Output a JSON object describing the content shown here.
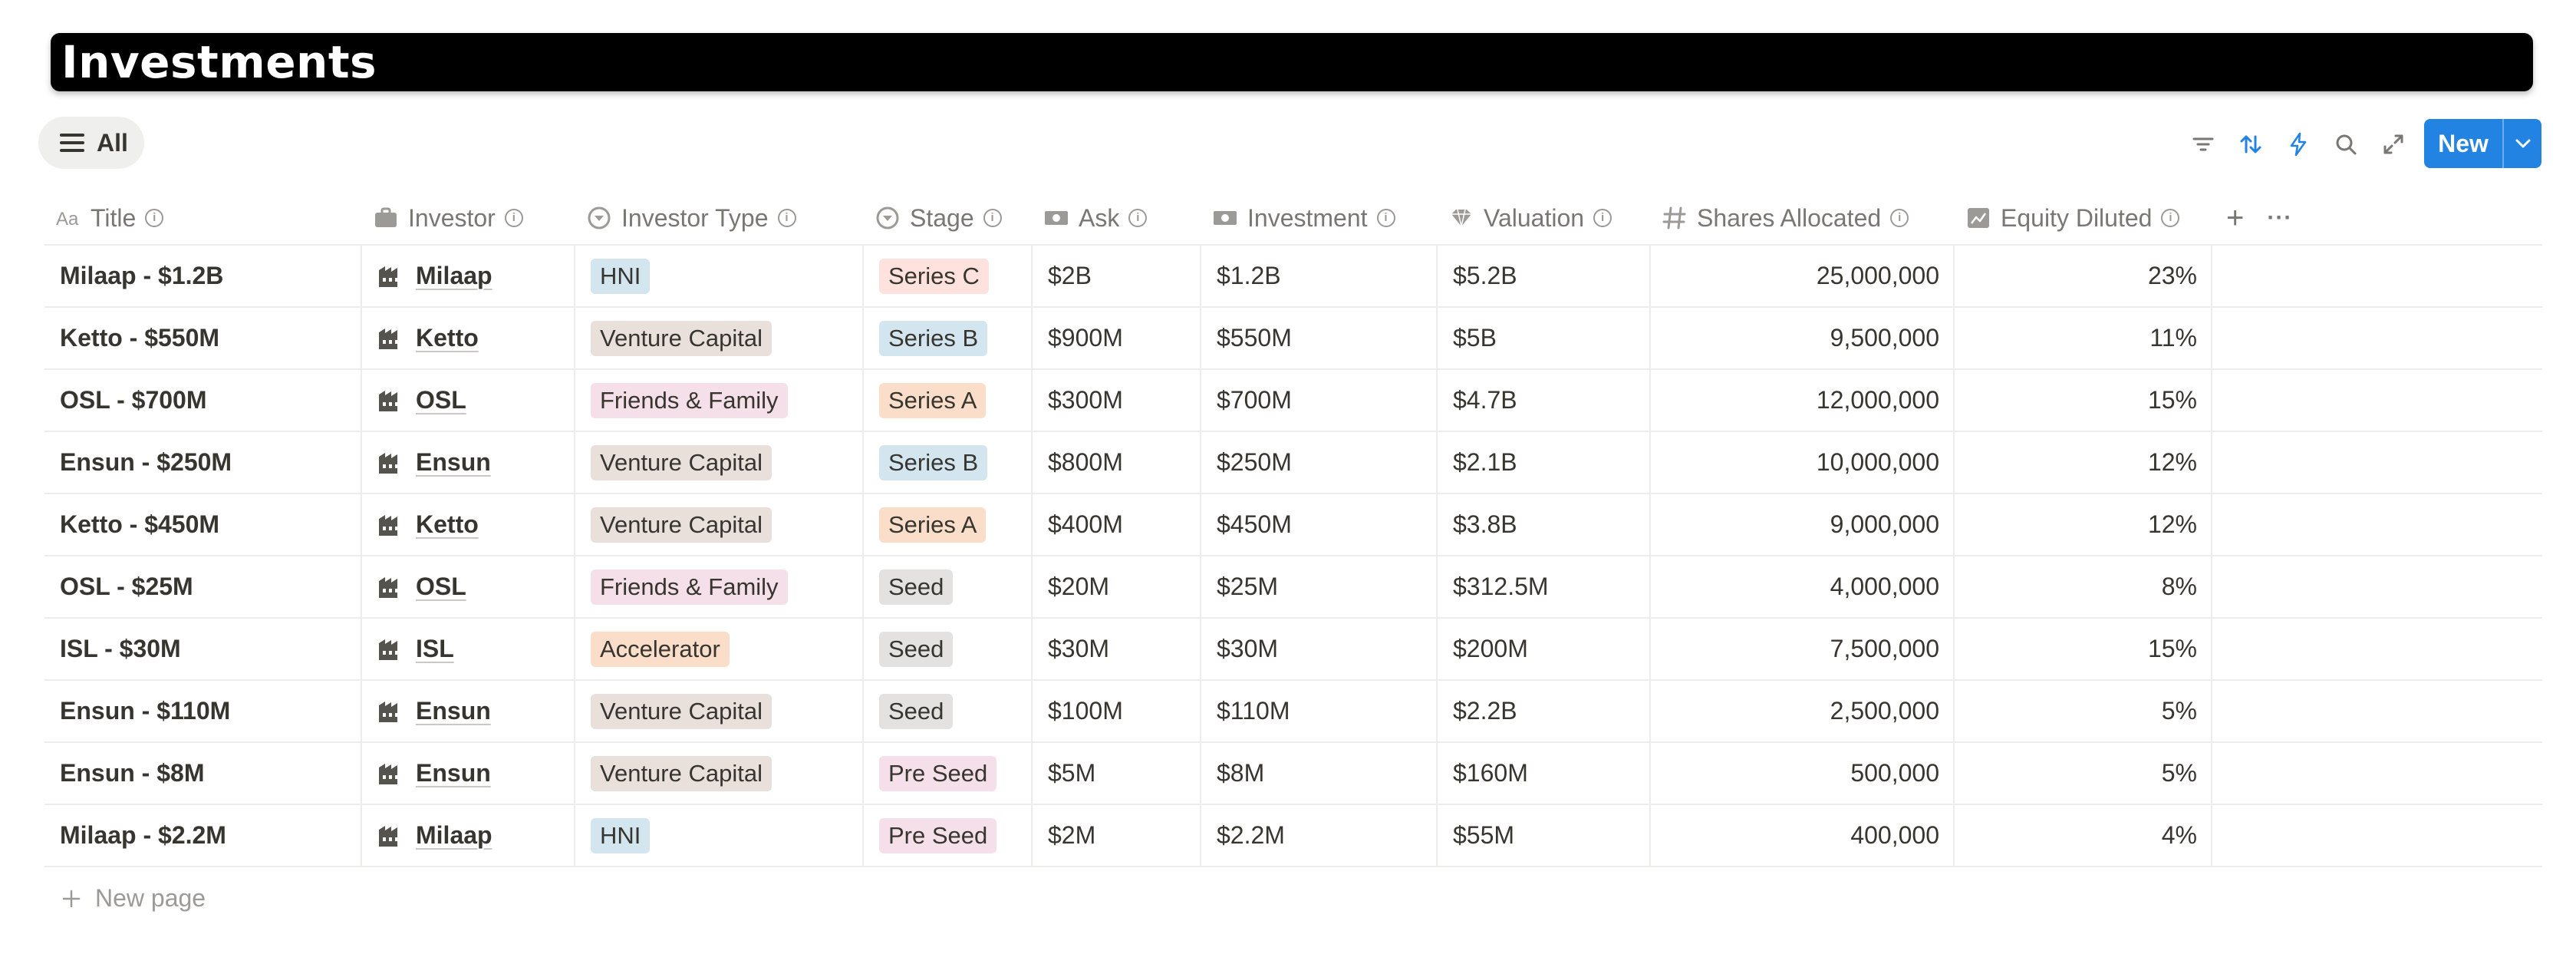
{
  "page_title": "Investments",
  "view_tab": {
    "label": "All"
  },
  "toolbar": {
    "new_label": "New"
  },
  "columns": {
    "title": "Title",
    "investor": "Investor",
    "investor_type": "Investor Type",
    "stage": "Stage",
    "ask": "Ask",
    "investment": "Investment",
    "valuation": "Valuation",
    "shares": "Shares Allocated",
    "equity": "Equity Diluted"
  },
  "tag_colors": {
    "HNI": "#d3e5ef",
    "Venture Capital": "#e9e0dc",
    "Friends & Family": "#f5e0e9",
    "Accelerator": "#fadec9",
    "Series C": "#ffe2dd",
    "Series B": "#d3e5ef",
    "Series A": "#fadec9",
    "Seed": "#e3e2e0",
    "Pre Seed": "#f5e0e9"
  },
  "rows": [
    {
      "title": "Milaap - $1.2B",
      "investor": "Milaap",
      "investor_type": "HNI",
      "stage": "Series C",
      "ask": "$2B",
      "investment": "$1.2B",
      "valuation": "$5.2B",
      "shares": "25,000,000",
      "equity": "23%"
    },
    {
      "title": "Ketto - $550M",
      "investor": "Ketto",
      "investor_type": "Venture Capital",
      "stage": "Series B",
      "ask": "$900M",
      "investment": "$550M",
      "valuation": "$5B",
      "shares": "9,500,000",
      "equity": "11%"
    },
    {
      "title": "OSL - $700M",
      "investor": "OSL",
      "investor_type": "Friends & Family",
      "stage": "Series A",
      "ask": "$300M",
      "investment": "$700M",
      "valuation": "$4.7B",
      "shares": "12,000,000",
      "equity": "15%"
    },
    {
      "title": "Ensun - $250M",
      "investor": "Ensun",
      "investor_type": "Venture Capital",
      "stage": "Series B",
      "ask": "$800M",
      "investment": "$250M",
      "valuation": "$2.1B",
      "shares": "10,000,000",
      "equity": "12%"
    },
    {
      "title": "Ketto - $450M",
      "investor": "Ketto",
      "investor_type": "Venture Capital",
      "stage": "Series A",
      "ask": "$400M",
      "investment": "$450M",
      "valuation": "$3.8B",
      "shares": "9,000,000",
      "equity": "12%"
    },
    {
      "title": "OSL - $25M",
      "investor": "OSL",
      "investor_type": "Friends & Family",
      "stage": "Seed",
      "ask": "$20M",
      "investment": "$25M",
      "valuation": "$312.5M",
      "shares": "4,000,000",
      "equity": "8%"
    },
    {
      "title": "ISL - $30M",
      "investor": "ISL",
      "investor_type": "Accelerator",
      "stage": "Seed",
      "ask": "$30M",
      "investment": "$30M",
      "valuation": "$200M",
      "shares": "7,500,000",
      "equity": "15%"
    },
    {
      "title": "Ensun - $110M",
      "investor": "Ensun",
      "investor_type": "Venture Capital",
      "stage": "Seed",
      "ask": "$100M",
      "investment": "$110M",
      "valuation": "$2.2B",
      "shares": "2,500,000",
      "equity": "5%"
    },
    {
      "title": "Ensun - $8M",
      "investor": "Ensun",
      "investor_type": "Venture Capital",
      "stage": "Pre Seed",
      "ask": "$5M",
      "investment": "$8M",
      "valuation": "$160M",
      "shares": "500,000",
      "equity": "5%"
    },
    {
      "title": "Milaap - $2.2M",
      "investor": "Milaap",
      "investor_type": "HNI",
      "stage": "Pre Seed",
      "ask": "$2M",
      "investment": "$2.2M",
      "valuation": "$55M",
      "shares": "400,000",
      "equity": "4%"
    }
  ],
  "new_page_label": "New page"
}
